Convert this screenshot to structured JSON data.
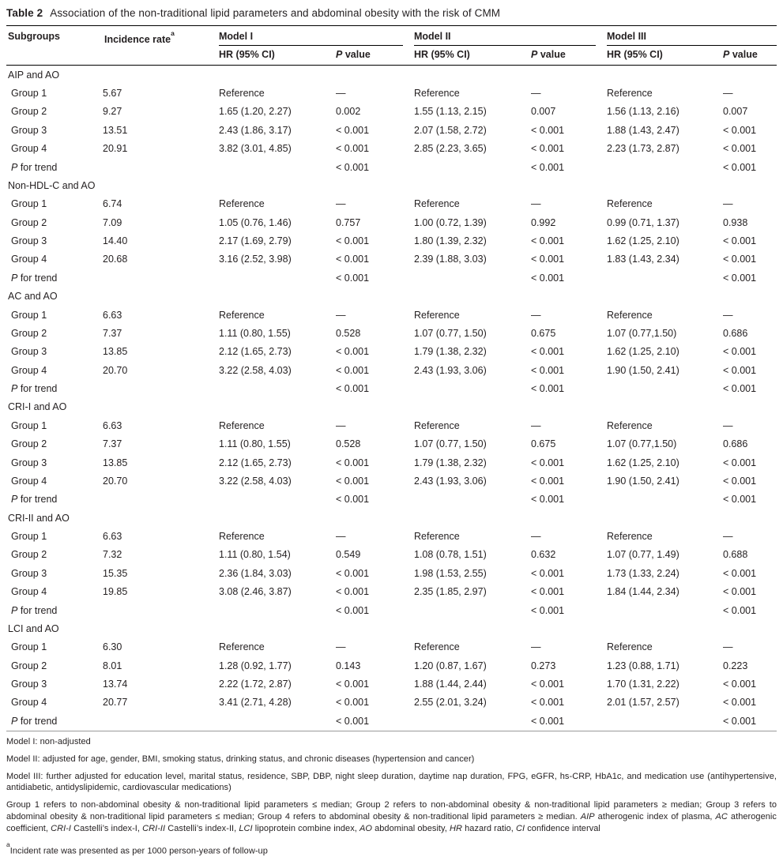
{
  "title": {
    "label": "Table 2",
    "text": "Association of the non-traditional lipid parameters and abdominal obesity with the risk of CMM"
  },
  "header": {
    "subgroups": "Subgroups",
    "incidence_rich": [
      {
        "t": "Incidence rate"
      },
      {
        "t": "a",
        "sup": true
      }
    ],
    "models": [
      "Model I",
      "Model II",
      "Model III"
    ],
    "hr_label": "HR (95% CI)",
    "pvalue_rich": [
      {
        "t": "P",
        "i": true
      },
      {
        "t": " value"
      }
    ]
  },
  "table": {
    "p_for_trend_rich": [
      {
        "t": "P",
        "i": true
      },
      {
        "t": " for trend"
      }
    ],
    "sections": [
      {
        "label": "AIP and AO",
        "rows": [
          {
            "label": "Group 1",
            "cells": [
              "5.67",
              "Reference",
              "—",
              "Reference",
              "—",
              "Reference",
              "—"
            ]
          },
          {
            "label": "Group 2",
            "cells": [
              "9.27",
              "1.65 (1.20, 2.27)",
              "0.002",
              "1.55 (1.13, 2.15)",
              "0.007",
              "1.56 (1.13, 2.16)",
              "0.007"
            ]
          },
          {
            "label": "Group 3",
            "cells": [
              "13.51",
              "2.43 (1.86, 3.17)",
              "< 0.001",
              "2.07 (1.58, 2.72)",
              "< 0.001",
              "1.88 (1.43, 2.47)",
              "< 0.001"
            ]
          },
          {
            "label": "Group 4",
            "cells": [
              "20.91",
              "3.82 (3.01, 4.85)",
              "< 0.001",
              "2.85 (2.23, 3.65)",
              "< 0.001",
              "2.23 (1.73, 2.87)",
              "< 0.001"
            ]
          },
          {
            "type": "ptrend",
            "cells": [
              "",
              "",
              "< 0.001",
              "",
              "< 0.001",
              "",
              "< 0.001"
            ]
          }
        ]
      },
      {
        "label": "Non-HDL-C and AO",
        "rows": [
          {
            "label": "Group 1",
            "cells": [
              "6.74",
              "Reference",
              "—",
              "Reference",
              "—",
              "Reference",
              "—"
            ]
          },
          {
            "label": "Group 2",
            "cells": [
              "7.09",
              "1.05 (0.76, 1.46)",
              "0.757",
              "1.00 (0.72, 1.39)",
              "0.992",
              "0.99 (0.71, 1.37)",
              "0.938"
            ]
          },
          {
            "label": "Group 3",
            "cells": [
              "14.40",
              "2.17 (1.69, 2.79)",
              "< 0.001",
              "1.80 (1.39, 2.32)",
              "< 0.001",
              "1.62 (1.25, 2.10)",
              "< 0.001"
            ]
          },
          {
            "label": "Group 4",
            "cells": [
              "20.68",
              "3.16 (2.52, 3.98)",
              "< 0.001",
              "2.39 (1.88, 3.03)",
              "< 0.001",
              "1.83 (1.43, 2.34)",
              "< 0.001"
            ]
          },
          {
            "type": "ptrend",
            "cells": [
              "",
              "",
              "< 0.001",
              "",
              "< 0.001",
              "",
              "< 0.001"
            ]
          }
        ]
      },
      {
        "label": "AC and AO",
        "rows": [
          {
            "label": "Group 1",
            "cells": [
              "6.63",
              "Reference",
              "—",
              "Reference",
              "—",
              "Reference",
              "—"
            ]
          },
          {
            "label": "Group 2",
            "cells": [
              "7.37",
              "1.11 (0.80, 1.55)",
              "0.528",
              "1.07 (0.77, 1.50)",
              "0.675",
              "1.07 (0.77,1.50)",
              "0.686"
            ]
          },
          {
            "label": "Group 3",
            "cells": [
              "13.85",
              "2.12 (1.65, 2.73)",
              "< 0.001",
              "1.79 (1.38, 2.32)",
              "< 0.001",
              "1.62 (1.25, 2.10)",
              "< 0.001"
            ]
          },
          {
            "label": "Group 4",
            "cells": [
              "20.70",
              "3.22 (2.58, 4.03)",
              "< 0.001",
              "2.43 (1.93, 3.06)",
              "< 0.001",
              "1.90 (1.50, 2.41)",
              "< 0.001"
            ]
          },
          {
            "type": "ptrend",
            "cells": [
              "",
              "",
              "< 0.001",
              "",
              "< 0.001",
              "",
              "< 0.001"
            ]
          }
        ]
      },
      {
        "label": "CRI-I and AO",
        "rows": [
          {
            "label": "Group 1",
            "cells": [
              "6.63",
              "Reference",
              "—",
              "Reference",
              "—",
              "Reference",
              "—"
            ]
          },
          {
            "label": "Group 2",
            "cells": [
              "7.37",
              "1.11 (0.80, 1.55)",
              "0.528",
              "1.07 (0.77, 1.50)",
              "0.675",
              "1.07 (0.77,1.50)",
              "0.686"
            ]
          },
          {
            "label": "Group 3",
            "cells": [
              "13.85",
              "2.12 (1.65, 2.73)",
              "< 0.001",
              "1.79 (1.38, 2.32)",
              "< 0.001",
              "1.62 (1.25, 2.10)",
              "< 0.001"
            ]
          },
          {
            "label": "Group 4",
            "cells": [
              "20.70",
              "3.22 (2.58, 4.03)",
              "< 0.001",
              "2.43 (1.93, 3.06)",
              "< 0.001",
              "1.90 (1.50, 2.41)",
              "< 0.001"
            ]
          },
          {
            "type": "ptrend",
            "cells": [
              "",
              "",
              "< 0.001",
              "",
              "< 0.001",
              "",
              "< 0.001"
            ]
          }
        ]
      },
      {
        "label": "CRI-II and AO",
        "rows": [
          {
            "label": "Group 1",
            "cells": [
              "6.63",
              "Reference",
              "—",
              "Reference",
              "—",
              "Reference",
              "—"
            ]
          },
          {
            "label": "Group 2",
            "cells": [
              "7.32",
              "1.11 (0.80, 1.54)",
              "0.549",
              "1.08 (0.78, 1.51)",
              "0.632",
              "1.07 (0.77, 1.49)",
              "0.688"
            ]
          },
          {
            "label": "Group 3",
            "cells": [
              "15.35",
              "2.36 (1.84, 3.03)",
              "< 0.001",
              "1.98 (1.53, 2.55)",
              "< 0.001",
              "1.73 (1.33, 2.24)",
              "< 0.001"
            ]
          },
          {
            "label": "Group 4",
            "cells": [
              "19.85",
              "3.08 (2.46, 3.87)",
              "< 0.001",
              "2.35 (1.85, 2.97)",
              "< 0.001",
              "1.84 (1.44, 2.34)",
              "< 0.001"
            ]
          },
          {
            "type": "ptrend",
            "cells": [
              "",
              "",
              "< 0.001",
              "",
              "< 0.001",
              "",
              "< 0.001"
            ]
          }
        ]
      },
      {
        "label": "LCI and AO",
        "rows": [
          {
            "label": "Group 1",
            "cells": [
              "6.30",
              "Reference",
              "—",
              "Reference",
              "—",
              "Reference",
              "—"
            ]
          },
          {
            "label": "Group 2",
            "cells": [
              "8.01",
              "1.28 (0.92, 1.77)",
              "0.143",
              "1.20 (0.87, 1.67)",
              "0.273",
              "1.23 (0.88, 1.71)",
              "0.223"
            ]
          },
          {
            "label": "Group 3",
            "cells": [
              "13.74",
              "2.22 (1.72, 2.87)",
              "< 0.001",
              "1.88 (1.44, 2.44)",
              "< 0.001",
              "1.70 (1.31, 2.22)",
              "< 0.001"
            ]
          },
          {
            "label": "Group 4",
            "cells": [
              "20.77",
              "3.41 (2.71, 4.28)",
              "< 0.001",
              "2.55 (2.01, 3.24)",
              "< 0.001",
              "2.01 (1.57, 2.57)",
              "< 0.001"
            ]
          },
          {
            "type": "ptrend",
            "cells": [
              "",
              "",
              "< 0.001",
              "",
              "< 0.001",
              "",
              "< 0.001"
            ]
          }
        ]
      }
    ]
  },
  "footnotes": {
    "model1": "Model I: non-adjusted",
    "model2": "Model II: adjusted for age, gender, BMI, smoking status, drinking status, and chronic diseases (hypertension and cancer)",
    "model3": "Model III: further adjusted for education level, marital status, residence, SBP, DBP, night sleep duration, daytime nap duration, FPG, eGFR, hs-CRP, HbA1c, and medication use (antihypertensive, antidiabetic, antidyslipidemic, cardiovascular medications)",
    "groups_rich": [
      {
        "t": "Group 1 refers to non-abdominal obesity & non-traditional lipid parameters ≤ median; Group 2 refers to non-abdominal obesity & non-traditional lipid parameters ≥ median; Group 3 refers to abdominal obesity & non-traditional lipid parameters ≤ median; Group 4 refers to abdominal obesity & non-traditional lipid parameters ≥ median. "
      },
      {
        "t": "AIP",
        "i": true
      },
      {
        "t": " atherogenic index of plasma, "
      },
      {
        "t": "AC",
        "i": true
      },
      {
        "t": " atherogenic coefficient, "
      },
      {
        "t": "CRI-I",
        "i": true
      },
      {
        "t": " Castelli’s index-I, "
      },
      {
        "t": "CRI-II",
        "i": true
      },
      {
        "t": " Castelli’s index-II, "
      },
      {
        "t": "LCI",
        "i": true
      },
      {
        "t": " lipoprotein combine index, "
      },
      {
        "t": "AO",
        "i": true
      },
      {
        "t": " abdominal obesity, "
      },
      {
        "t": "HR",
        "i": true
      },
      {
        "t": " hazard ratio, "
      },
      {
        "t": "CI",
        "i": true
      },
      {
        "t": " confidence interval"
      }
    ],
    "incident_rich": [
      {
        "t": "a",
        "sup": true
      },
      {
        "t": "Incident rate was presented as per 1000 person-years of follow-up"
      }
    ]
  }
}
